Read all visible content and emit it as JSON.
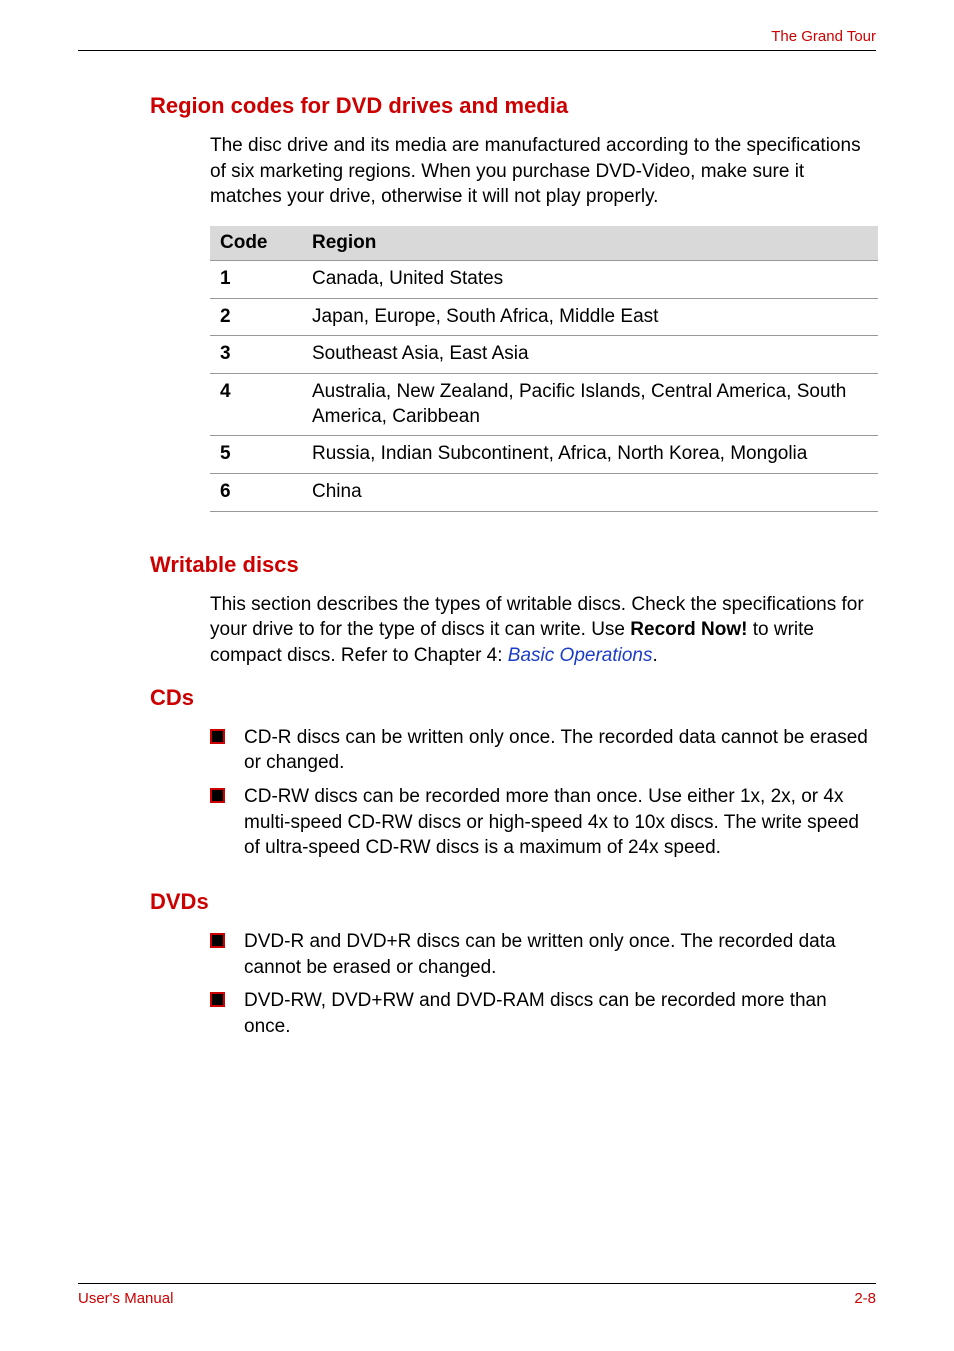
{
  "header": {
    "title": "The Grand Tour"
  },
  "sections": {
    "region_codes": {
      "heading": "Region codes for DVD drives and media",
      "para": "The disc drive and its media are manufactured according to the specifications of six marketing regions. When you purchase DVD-Video, make sure it matches your drive, otherwise it will not play properly.",
      "table": {
        "col_code": "Code",
        "col_region": "Region",
        "rows": [
          {
            "code": "1",
            "region": "Canada, United States"
          },
          {
            "code": "2",
            "region": "Japan, Europe, South Africa, Middle East"
          },
          {
            "code": "3",
            "region": "Southeast Asia, East Asia"
          },
          {
            "code": "4",
            "region": "Australia, New Zealand, Pacific Islands, Central America, South America, Caribbean"
          },
          {
            "code": "5",
            "region": "Russia, Indian Subcontinent, Africa, North Korea, Mongolia"
          },
          {
            "code": "6",
            "region": "China"
          }
        ]
      }
    },
    "writable": {
      "heading": "Writable discs",
      "para_pre": "This section describes the types of writable discs. Check the specifications for your drive to for the type of discs it can write. Use ",
      "para_bold": "Record Now!",
      "para_mid": " to write compact discs. Refer to Chapter 4: ",
      "para_link": "Basic Operations",
      "para_post": "."
    },
    "cds": {
      "heading": "CDs",
      "items": [
        "CD-R discs can be written only once. The recorded data cannot be erased or changed.",
        "CD-RW discs can be recorded more than once. Use either 1x, 2x, or 4x multi-speed CD-RW discs or high-speed 4x to 10x discs. The write speed of ultra-speed CD-RW discs is a maximum of 24x speed."
      ]
    },
    "dvds": {
      "heading": "DVDs",
      "items": [
        "DVD-R and DVD+R discs can be written only once. The recorded data cannot be erased or changed.",
        "DVD-RW, DVD+RW and DVD-RAM discs can be recorded more than once."
      ]
    }
  },
  "footer": {
    "left": "User's Manual",
    "right": "2-8"
  },
  "colors": {
    "accent": "#cc0000",
    "link": "#1a3cc8",
    "table_header_bg": "#d9d9d9",
    "border": "#999999",
    "text": "#000000"
  }
}
